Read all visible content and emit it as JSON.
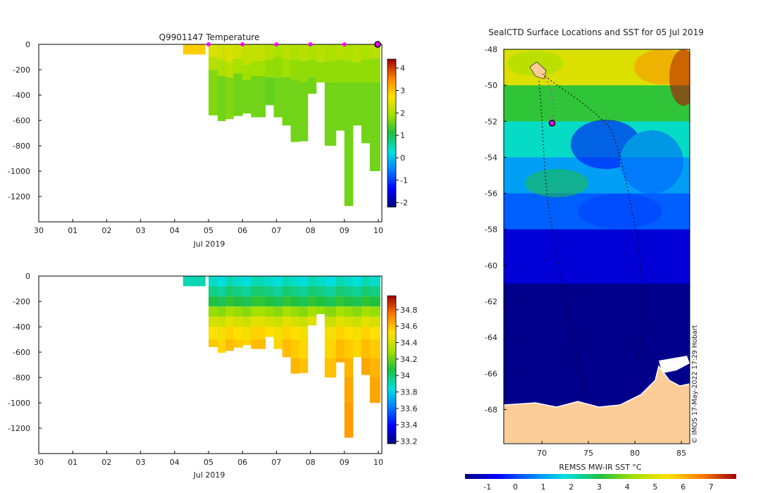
{
  "chart_data": [
    {
      "type": "heatmap",
      "title": "Q9901147  Temperature",
      "xlabel": "Jul 2019",
      "x_ticks": [
        "30",
        "01",
        "02",
        "03",
        "04",
        "05",
        "06",
        "07",
        "08",
        "09",
        "10"
      ],
      "y_ticks": [
        0,
        -200,
        -400,
        -600,
        -800,
        -1000,
        -1200
      ],
      "ylim": [
        -1400,
        0
      ],
      "colorbar": {
        "ticks": [
          4,
          3,
          2,
          1,
          0,
          -1,
          -2
        ],
        "range": [
          -2.2,
          4.4
        ]
      },
      "surfacing_markers_day": [
        5,
        6,
        7,
        8,
        9
      ],
      "current_marker_day": 10,
      "profiles": [
        {
          "day": 4.25,
          "width": 0.65,
          "depth": 80,
          "bands": [
            [
              0,
              80,
              2.9
            ]
          ]
        },
        {
          "day": 5.0,
          "width": 0.27,
          "depth": 560,
          "bands": [
            [
              0,
              100,
              2.4
            ],
            [
              100,
              200,
              2.1
            ],
            [
              200,
              560,
              1.7
            ]
          ]
        },
        {
          "day": 5.27,
          "width": 0.23,
          "depth": 605,
          "bands": [
            [
              0,
              120,
              2.3
            ],
            [
              120,
              250,
              2.0
            ],
            [
              250,
              605,
              1.6
            ]
          ]
        },
        {
          "day": 5.5,
          "width": 0.23,
          "depth": 590,
          "bands": [
            [
              0,
              140,
              2.4
            ],
            [
              140,
              260,
              2.1
            ],
            [
              260,
              590,
              1.7
            ]
          ]
        },
        {
          "day": 5.73,
          "width": 0.27,
          "depth": 565,
          "bands": [
            [
              0,
              110,
              2.3
            ],
            [
              110,
              230,
              2.0
            ],
            [
              230,
              565,
              1.6
            ]
          ]
        },
        {
          "day": 6.0,
          "width": 0.25,
          "depth": 545,
          "bands": [
            [
              0,
              160,
              2.2
            ],
            [
              160,
              280,
              1.9
            ],
            [
              280,
              545,
              1.6
            ]
          ]
        },
        {
          "day": 6.25,
          "width": 0.42,
          "depth": 575,
          "bands": [
            [
              0,
              130,
              2.2
            ],
            [
              130,
              250,
              1.9
            ],
            [
              250,
              575,
              1.6
            ]
          ]
        },
        {
          "day": 6.67,
          "width": 0.25,
          "depth": 480,
          "bands": [
            [
              0,
              120,
              2.1
            ],
            [
              120,
              260,
              1.8
            ],
            [
              260,
              480,
              1.5
            ]
          ]
        },
        {
          "day": 6.92,
          "width": 0.25,
          "depth": 575,
          "bands": [
            [
              0,
              100,
              2.0
            ],
            [
              100,
              260,
              1.8
            ],
            [
              260,
              575,
              1.6
            ]
          ]
        },
        {
          "day": 7.17,
          "width": 0.25,
          "depth": 640,
          "bands": [
            [
              0,
              110,
              2.1
            ],
            [
              110,
              260,
              1.9
            ],
            [
              260,
              640,
              1.6
            ]
          ]
        },
        {
          "day": 7.42,
          "width": 0.25,
          "depth": 770,
          "bands": [
            [
              0,
              120,
              2.0
            ],
            [
              120,
              280,
              1.8
            ],
            [
              280,
              770,
              1.6
            ]
          ]
        },
        {
          "day": 7.67,
          "width": 0.25,
          "depth": 765,
          "bands": [
            [
              0,
              130,
              2.1
            ],
            [
              130,
              300,
              1.8
            ],
            [
              300,
              765,
              1.6
            ]
          ]
        },
        {
          "day": 7.92,
          "width": 0.25,
          "depth": 390,
          "bands": [
            [
              0,
              120,
              2.0
            ],
            [
              120,
              260,
              1.8
            ],
            [
              260,
              390,
              1.6
            ]
          ]
        },
        {
          "day": 8.17,
          "width": 0.25,
          "depth": 300,
          "bands": [
            [
              0,
              140,
              2.1
            ],
            [
              140,
              300,
              1.8
            ]
          ]
        },
        {
          "day": 8.42,
          "width": 0.33,
          "depth": 800,
          "bands": [
            [
              0,
              130,
              2.0
            ],
            [
              130,
              300,
              1.8
            ],
            [
              300,
              800,
              1.6
            ]
          ]
        },
        {
          "day": 8.75,
          "width": 0.25,
          "depth": 680,
          "bands": [
            [
              0,
              120,
              2.1
            ],
            [
              120,
              300,
              1.8
            ],
            [
              300,
              680,
              1.6
            ]
          ]
        },
        {
          "day": 9.0,
          "width": 0.25,
          "depth": 1275,
          "bands": [
            [
              0,
              130,
              2.0
            ],
            [
              130,
              300,
              1.8
            ],
            [
              300,
              1275,
              1.6
            ]
          ]
        },
        {
          "day": 9.25,
          "width": 0.25,
          "depth": 640,
          "bands": [
            [
              0,
              140,
              2.1
            ],
            [
              140,
              300,
              1.8
            ],
            [
              300,
              640,
              1.6
            ]
          ]
        },
        {
          "day": 9.5,
          "width": 0.25,
          "depth": 780,
          "bands": [
            [
              0,
              120,
              2.0
            ],
            [
              120,
              300,
              1.8
            ],
            [
              300,
              780,
              1.6
            ]
          ]
        },
        {
          "day": 9.75,
          "width": 0.3,
          "depth": 1000,
          "bands": [
            [
              0,
              110,
              2.1
            ],
            [
              110,
              300,
              1.8
            ],
            [
              300,
              1000,
              1.6
            ]
          ]
        }
      ]
    },
    {
      "type": "heatmap",
      "title": "",
      "xlabel": "Jul 2019",
      "x_ticks": [
        "30",
        "01",
        "02",
        "03",
        "04",
        "05",
        "06",
        "07",
        "08",
        "09",
        "10"
      ],
      "y_ticks": [
        0,
        -200,
        -400,
        -600,
        -800,
        -1000,
        -1200
      ],
      "ylim": [
        -1400,
        0
      ],
      "colorbar": {
        "ticks": [
          34.8,
          34.6,
          34.4,
          34.2,
          34,
          33.8,
          33.6,
          33.4,
          33.2
        ],
        "range": [
          33.17,
          34.97
        ]
      },
      "profiles_use_depths_from_first_chart": true,
      "salinity_profile": [
        [
          0,
          80,
          33.9
        ],
        [
          80,
          160,
          34.0
        ],
        [
          160,
          240,
          34.1
        ],
        [
          240,
          320,
          34.3
        ],
        [
          320,
          400,
          34.45
        ],
        [
          400,
          500,
          34.55
        ],
        [
          500,
          650,
          34.6
        ],
        [
          650,
          800,
          34.65
        ],
        [
          800,
          1000,
          34.68
        ],
        [
          1000,
          1300,
          34.7
        ]
      ]
    },
    {
      "type": "heatmap",
      "title": "SealCTD Surface Locations and SST for 05 Jul 2019",
      "xlabel": "",
      "x_ticks": [
        70,
        75,
        80,
        85
      ],
      "y_ticks": [
        -48,
        -50,
        -52,
        -54,
        -56,
        -58,
        -60,
        -62,
        -64,
        -66,
        -68
      ],
      "xlim": [
        65.9,
        85.9
      ],
      "ylim": [
        -69.9,
        -48
      ],
      "colorbar_label": "REMSS MW-IR SST °C",
      "colorbar": {
        "ticks": [
          -1,
          0,
          1,
          2,
          3,
          4,
          5,
          6,
          7
        ],
        "range": [
          -1.8,
          7.9
        ]
      },
      "sst_zones": [
        {
          "lat_from": -48,
          "lat_to": -50,
          "value": 5.0
        },
        {
          "lat_from": -50,
          "lat_to": -52,
          "value": 3.2
        },
        {
          "lat_from": -52,
          "lat_to": -54,
          "value": 2.0
        },
        {
          "lat_from": -54,
          "lat_to": -56,
          "value": 1.0
        },
        {
          "lat_from": -56,
          "lat_to": -58,
          "value": 0.3
        },
        {
          "lat_from": -58,
          "lat_to": -61,
          "value": -1.0
        },
        {
          "lat_from": -61,
          "lat_to": -69.9,
          "value": -1.7
        }
      ],
      "current_position": {
        "lon": 71.1,
        "lat": -52.1
      },
      "annotation": "© IMOS 17-May-2022 17:29 Hobart"
    }
  ],
  "text": {
    "t_title": "Q9901147  Temperature",
    "t_xlabel": "Jul 2019",
    "s_xlabel": "Jul 2019",
    "map_title": "SealCTD Surface Locations and SST for 05 Jul 2019",
    "map_cbar_label": "REMSS MW-IR SST °C",
    "map_credit": "© IMOS 17-May-2022 17:29 Hobart"
  }
}
